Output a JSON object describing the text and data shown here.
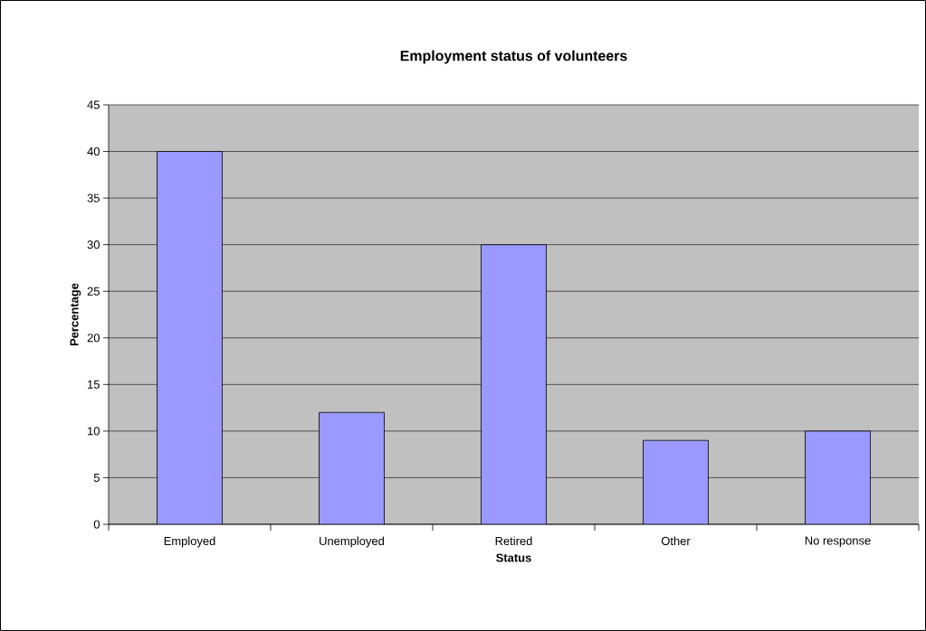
{
  "chart_data": {
    "type": "bar",
    "title": "Employment status of volunteers",
    "xlabel": "Status",
    "ylabel": "Percentage",
    "categories": [
      "Employed",
      "Unemployed",
      "Retired",
      "Other",
      "No response"
    ],
    "values": [
      40,
      12,
      30,
      9,
      10
    ],
    "color": "#9999ff",
    "ylim": [
      0,
      45
    ],
    "yticks": [
      0,
      5,
      10,
      15,
      20,
      25,
      30,
      35,
      40,
      45
    ],
    "grid": "y"
  }
}
